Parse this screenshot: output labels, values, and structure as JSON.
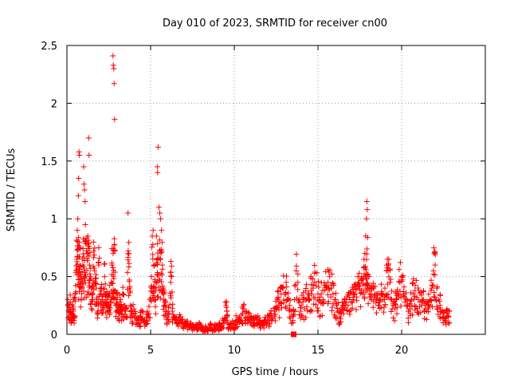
{
  "chart_data": {
    "type": "scatter",
    "title": "Day 010 of 2023, SRMTID for receiver cn00",
    "xlabel": "GPS time / hours",
    "ylabel": "SRMTID / TECUs",
    "xlim": [
      0,
      25
    ],
    "ylim": [
      0,
      2.5
    ],
    "x_ticks": [
      0,
      5,
      10,
      15,
      20
    ],
    "x_tick_labels": [
      "0",
      "5",
      "10",
      "15",
      "20"
    ],
    "y_ticks": [
      0,
      0.5,
      1,
      1.5,
      2,
      2.5
    ],
    "y_tick_labels": [
      "0",
      "0.5",
      "1",
      "1.5",
      "2",
      "2.5"
    ],
    "grid": true,
    "marker": "+",
    "color": "#ff0000",
    "series": [
      {
        "name": "SRMTID",
        "points": [
          [
            0.05,
            0.25
          ],
          [
            0.1,
            0.15
          ],
          [
            0.15,
            0.2
          ],
          [
            0.2,
            0.28
          ],
          [
            0.25,
            0.12
          ],
          [
            0.3,
            0.18
          ],
          [
            0.35,
            0.22
          ],
          [
            0.4,
            0.3
          ],
          [
            0.45,
            0.14
          ],
          [
            0.5,
            0.35
          ],
          [
            0.55,
            0.55
          ],
          [
            0.6,
            0.65
          ],
          [
            0.62,
            0.9
          ],
          [
            0.65,
            1.0
          ],
          [
            0.68,
            1.2
          ],
          [
            0.7,
            1.35
          ],
          [
            0.72,
            1.58
          ],
          [
            0.75,
            1.55
          ],
          [
            0.78,
            0.75
          ],
          [
            0.8,
            0.45
          ],
          [
            0.85,
            0.5
          ],
          [
            0.9,
            0.4
          ],
          [
            0.95,
            0.6
          ],
          [
            1.0,
            1.45
          ],
          [
            1.02,
            1.3
          ],
          [
            1.05,
            1.25
          ],
          [
            1.08,
            1.15
          ],
          [
            1.1,
            0.95
          ],
          [
            1.15,
            0.8
          ],
          [
            1.2,
            0.7
          ],
          [
            1.25,
            0.85
          ],
          [
            1.3,
            1.7
          ],
          [
            1.32,
            1.55
          ],
          [
            1.35,
            0.6
          ],
          [
            1.4,
            0.5
          ],
          [
            1.45,
            0.4
          ],
          [
            1.5,
            0.3
          ],
          [
            1.55,
            0.35
          ],
          [
            1.6,
            0.72
          ],
          [
            1.65,
            0.55
          ],
          [
            1.7,
            0.45
          ],
          [
            1.75,
            0.4
          ],
          [
            1.8,
            0.3
          ],
          [
            1.85,
            0.2
          ],
          [
            1.9,
            0.6
          ],
          [
            2.0,
            0.4
          ],
          [
            2.05,
            0.35
          ],
          [
            2.1,
            0.3
          ],
          [
            2.15,
            0.25
          ],
          [
            2.2,
            0.4
          ],
          [
            2.25,
            0.5
          ],
          [
            2.3,
            0.35
          ],
          [
            2.35,
            0.25
          ],
          [
            2.4,
            0.3
          ],
          [
            2.45,
            0.2
          ],
          [
            2.5,
            0.25
          ],
          [
            2.55,
            0.35
          ],
          [
            2.6,
            0.28
          ],
          [
            2.65,
            0.45
          ],
          [
            2.7,
            0.6
          ],
          [
            2.75,
            2.41
          ],
          [
            2.77,
            2.33
          ],
          [
            2.8,
            2.3
          ],
          [
            2.82,
            2.17
          ],
          [
            2.85,
            1.86
          ],
          [
            2.9,
            0.35
          ],
          [
            2.95,
            0.25
          ],
          [
            3.0,
            0.3
          ],
          [
            3.05,
            0.2
          ],
          [
            3.1,
            0.18
          ],
          [
            3.15,
            0.25
          ],
          [
            3.2,
            0.3
          ],
          [
            3.25,
            0.22
          ],
          [
            3.3,
            0.15
          ],
          [
            3.35,
            0.35
          ],
          [
            3.4,
            0.25
          ],
          [
            3.5,
            0.2
          ],
          [
            3.6,
            0.15
          ],
          [
            3.65,
            1.05
          ],
          [
            3.7,
            0.7
          ],
          [
            3.75,
            0.4
          ],
          [
            3.8,
            0.25
          ],
          [
            3.85,
            0.2
          ],
          [
            3.9,
            0.15
          ],
          [
            4.0,
            0.22
          ],
          [
            4.1,
            0.18
          ],
          [
            4.2,
            0.12
          ],
          [
            4.3,
            0.1
          ],
          [
            4.4,
            0.15
          ],
          [
            4.5,
            0.2
          ],
          [
            4.6,
            0.12
          ],
          [
            4.7,
            0.1
          ],
          [
            4.8,
            0.15
          ],
          [
            4.9,
            0.18
          ],
          [
            5.0,
            0.3
          ],
          [
            5.05,
            0.5
          ],
          [
            5.1,
            0.85
          ],
          [
            5.15,
            0.9
          ],
          [
            5.2,
            0.6
          ],
          [
            5.25,
            0.4
          ],
          [
            5.3,
            0.3
          ],
          [
            5.35,
            0.85
          ],
          [
            5.4,
            1.45
          ],
          [
            5.42,
            1.4
          ],
          [
            5.45,
            1.62
          ],
          [
            5.5,
            1.1
          ],
          [
            5.55,
            1.05
          ],
          [
            5.6,
            1.0
          ],
          [
            5.65,
            0.9
          ],
          [
            5.7,
            0.6
          ],
          [
            5.75,
            0.4
          ],
          [
            5.8,
            0.3
          ],
          [
            5.85,
            0.25
          ],
          [
            5.9,
            0.2
          ],
          [
            6.0,
            0.15
          ],
          [
            6.1,
            0.18
          ],
          [
            6.2,
            0.45
          ],
          [
            6.25,
            0.5
          ],
          [
            6.3,
            0.2
          ],
          [
            6.4,
            0.15
          ],
          [
            6.5,
            0.12
          ],
          [
            6.6,
            0.1
          ],
          [
            6.7,
            0.14
          ],
          [
            6.8,
            0.12
          ],
          [
            6.9,
            0.1
          ],
          [
            7.0,
            0.08
          ],
          [
            7.1,
            0.1
          ],
          [
            7.2,
            0.09
          ],
          [
            7.3,
            0.07
          ],
          [
            7.4,
            0.08
          ],
          [
            7.5,
            0.06
          ],
          [
            7.6,
            0.07
          ],
          [
            7.7,
            0.08
          ],
          [
            7.8,
            0.05
          ],
          [
            7.9,
            0.1
          ],
          [
            8.0,
            0.06
          ],
          [
            8.1,
            0.05
          ],
          [
            8.2,
            0.04
          ],
          [
            8.3,
            0.06
          ],
          [
            8.4,
            0.03
          ],
          [
            8.5,
            0.05
          ],
          [
            8.6,
            0.08
          ],
          [
            8.7,
            0.04
          ],
          [
            8.8,
            0.06
          ],
          [
            8.9,
            0.07
          ],
          [
            9.0,
            0.05
          ],
          [
            9.1,
            0.08
          ],
          [
            9.2,
            0.06
          ],
          [
            9.3,
            0.1
          ],
          [
            9.4,
            0.12
          ],
          [
            9.5,
            0.25
          ],
          [
            9.55,
            0.2
          ],
          [
            9.6,
            0.1
          ],
          [
            9.7,
            0.06
          ],
          [
            9.8,
            0.08
          ],
          [
            9.9,
            0.1
          ],
          [
            10.0,
            0.08
          ],
          [
            10.1,
            0.12
          ],
          [
            10.2,
            0.1
          ],
          [
            10.3,
            0.15
          ],
          [
            10.4,
            0.12
          ],
          [
            10.5,
            0.18
          ],
          [
            10.6,
            0.2
          ],
          [
            10.7,
            0.15
          ],
          [
            10.8,
            0.12
          ],
          [
            10.9,
            0.18
          ],
          [
            11.0,
            0.15
          ],
          [
            11.1,
            0.12
          ],
          [
            11.2,
            0.1
          ],
          [
            11.3,
            0.14
          ],
          [
            11.4,
            0.16
          ],
          [
            11.5,
            0.12
          ],
          [
            11.6,
            0.1
          ],
          [
            11.7,
            0.08
          ],
          [
            11.8,
            0.12
          ],
          [
            11.9,
            0.1
          ],
          [
            12.0,
            0.15
          ],
          [
            12.1,
            0.12
          ],
          [
            12.2,
            0.18
          ],
          [
            12.3,
            0.14
          ],
          [
            12.4,
            0.2
          ],
          [
            12.5,
            0.22
          ],
          [
            12.6,
            0.3
          ],
          [
            12.7,
            0.28
          ],
          [
            12.8,
            0.35
          ],
          [
            12.9,
            0.4
          ],
          [
            13.0,
            0.35
          ],
          [
            13.1,
            0.45
          ],
          [
            13.2,
            0.3
          ],
          [
            13.3,
            0.25
          ],
          [
            13.4,
            0.2
          ],
          [
            13.5,
            0.12
          ],
          [
            13.6,
            0.3
          ],
          [
            13.7,
            0.55
          ],
          [
            13.8,
            0.45
          ],
          [
            13.9,
            0.3
          ],
          [
            14.0,
            0.25
          ],
          [
            14.1,
            0.28
          ],
          [
            14.2,
            0.22
          ],
          [
            14.3,
            0.3
          ],
          [
            14.4,
            0.35
          ],
          [
            14.5,
            0.3
          ],
          [
            14.6,
            0.38
          ],
          [
            14.7,
            0.4
          ],
          [
            14.8,
            0.45
          ],
          [
            14.9,
            0.42
          ],
          [
            15.0,
            0.35
          ],
          [
            15.1,
            0.3
          ],
          [
            15.2,
            0.35
          ],
          [
            15.3,
            0.3
          ],
          [
            15.4,
            0.38
          ],
          [
            15.5,
            0.42
          ],
          [
            15.6,
            0.45
          ],
          [
            15.7,
            0.5
          ],
          [
            15.8,
            0.4
          ],
          [
            15.9,
            0.35
          ],
          [
            16.0,
            0.3
          ],
          [
            16.1,
            0.25
          ],
          [
            16.2,
            0.2
          ],
          [
            16.3,
            0.15
          ],
          [
            16.4,
            0.18
          ],
          [
            16.5,
            0.25
          ],
          [
            16.6,
            0.3
          ],
          [
            16.7,
            0.28
          ],
          [
            16.8,
            0.25
          ],
          [
            16.9,
            0.3
          ],
          [
            17.0,
            0.28
          ],
          [
            17.1,
            0.32
          ],
          [
            17.2,
            0.35
          ],
          [
            17.3,
            0.4
          ],
          [
            17.4,
            0.45
          ],
          [
            17.5,
            0.42
          ],
          [
            17.6,
            0.38
          ],
          [
            17.7,
            0.35
          ],
          [
            17.75,
            0.5
          ],
          [
            17.8,
            0.7
          ],
          [
            17.85,
            0.85
          ],
          [
            17.9,
            1.0
          ],
          [
            17.92,
            1.15
          ],
          [
            17.95,
            1.08
          ],
          [
            18.0,
            0.4
          ],
          [
            18.1,
            0.35
          ],
          [
            18.2,
            0.3
          ],
          [
            18.3,
            0.4
          ],
          [
            18.4,
            0.35
          ],
          [
            18.5,
            0.3
          ],
          [
            18.6,
            0.25
          ],
          [
            18.7,
            0.28
          ],
          [
            18.8,
            0.35
          ],
          [
            18.9,
            0.3
          ],
          [
            19.0,
            0.4
          ],
          [
            19.1,
            0.55
          ],
          [
            19.15,
            0.65
          ],
          [
            19.2,
            0.6
          ],
          [
            19.3,
            0.45
          ],
          [
            19.4,
            0.3
          ],
          [
            19.5,
            0.25
          ],
          [
            19.6,
            0.22
          ],
          [
            19.7,
            0.3
          ],
          [
            19.8,
            0.35
          ],
          [
            19.9,
            0.45
          ],
          [
            20.0,
            0.5
          ],
          [
            20.1,
            0.35
          ],
          [
            20.2,
            0.28
          ],
          [
            20.3,
            0.25
          ],
          [
            20.4,
            0.2
          ],
          [
            20.5,
            0.22
          ],
          [
            20.6,
            0.3
          ],
          [
            20.7,
            0.35
          ],
          [
            20.8,
            0.38
          ],
          [
            20.9,
            0.32
          ],
          [
            21.0,
            0.3
          ],
          [
            21.1,
            0.28
          ],
          [
            21.2,
            0.25
          ],
          [
            21.3,
            0.3
          ],
          [
            21.4,
            0.22
          ],
          [
            21.5,
            0.2
          ],
          [
            21.6,
            0.25
          ],
          [
            21.7,
            0.3
          ],
          [
            21.8,
            0.4
          ],
          [
            21.9,
            0.55
          ],
          [
            21.95,
            0.7
          ],
          [
            22.0,
            0.6
          ],
          [
            22.1,
            0.4
          ],
          [
            22.2,
            0.3
          ],
          [
            22.3,
            0.25
          ],
          [
            22.4,
            0.2
          ],
          [
            22.5,
            0.15
          ],
          [
            22.6,
            0.12
          ],
          [
            22.7,
            0.18
          ],
          [
            22.8,
            0.15
          ],
          [
            22.85,
            0.2
          ]
        ]
      }
    ],
    "highlighted_point": [
      13.55,
      0.0
    ],
    "density_note": "dense"
  }
}
